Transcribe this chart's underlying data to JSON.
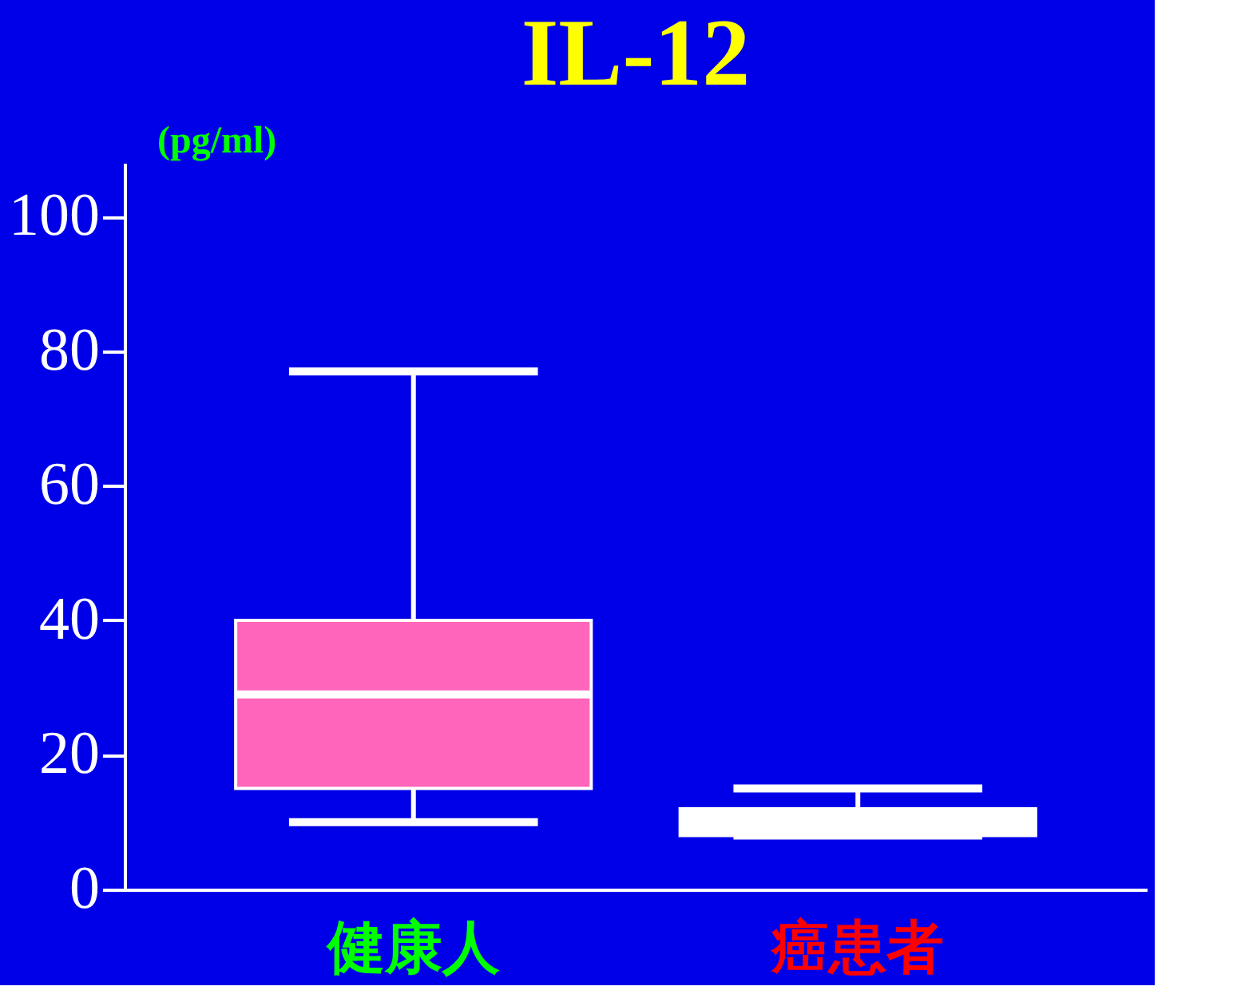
{
  "chart_data": {
    "type": "box",
    "title": "IL-12",
    "ylabel": "(pg/ml)",
    "categories": [
      "健康人",
      "癌患者"
    ],
    "boxes": [
      {
        "low": 10,
        "q1": 15,
        "median": 29,
        "q3": 40,
        "high": 77
      },
      {
        "low": 8,
        "q1": 8,
        "median": 10,
        "q3": 12,
        "high": 15
      }
    ],
    "colors": [
      "#ff66bb",
      "#ffffff"
    ],
    "ylim": [
      0,
      108
    ],
    "yticks": [
      0,
      20,
      40,
      60,
      80,
      100
    ],
    "grid": false,
    "legend": false
  }
}
